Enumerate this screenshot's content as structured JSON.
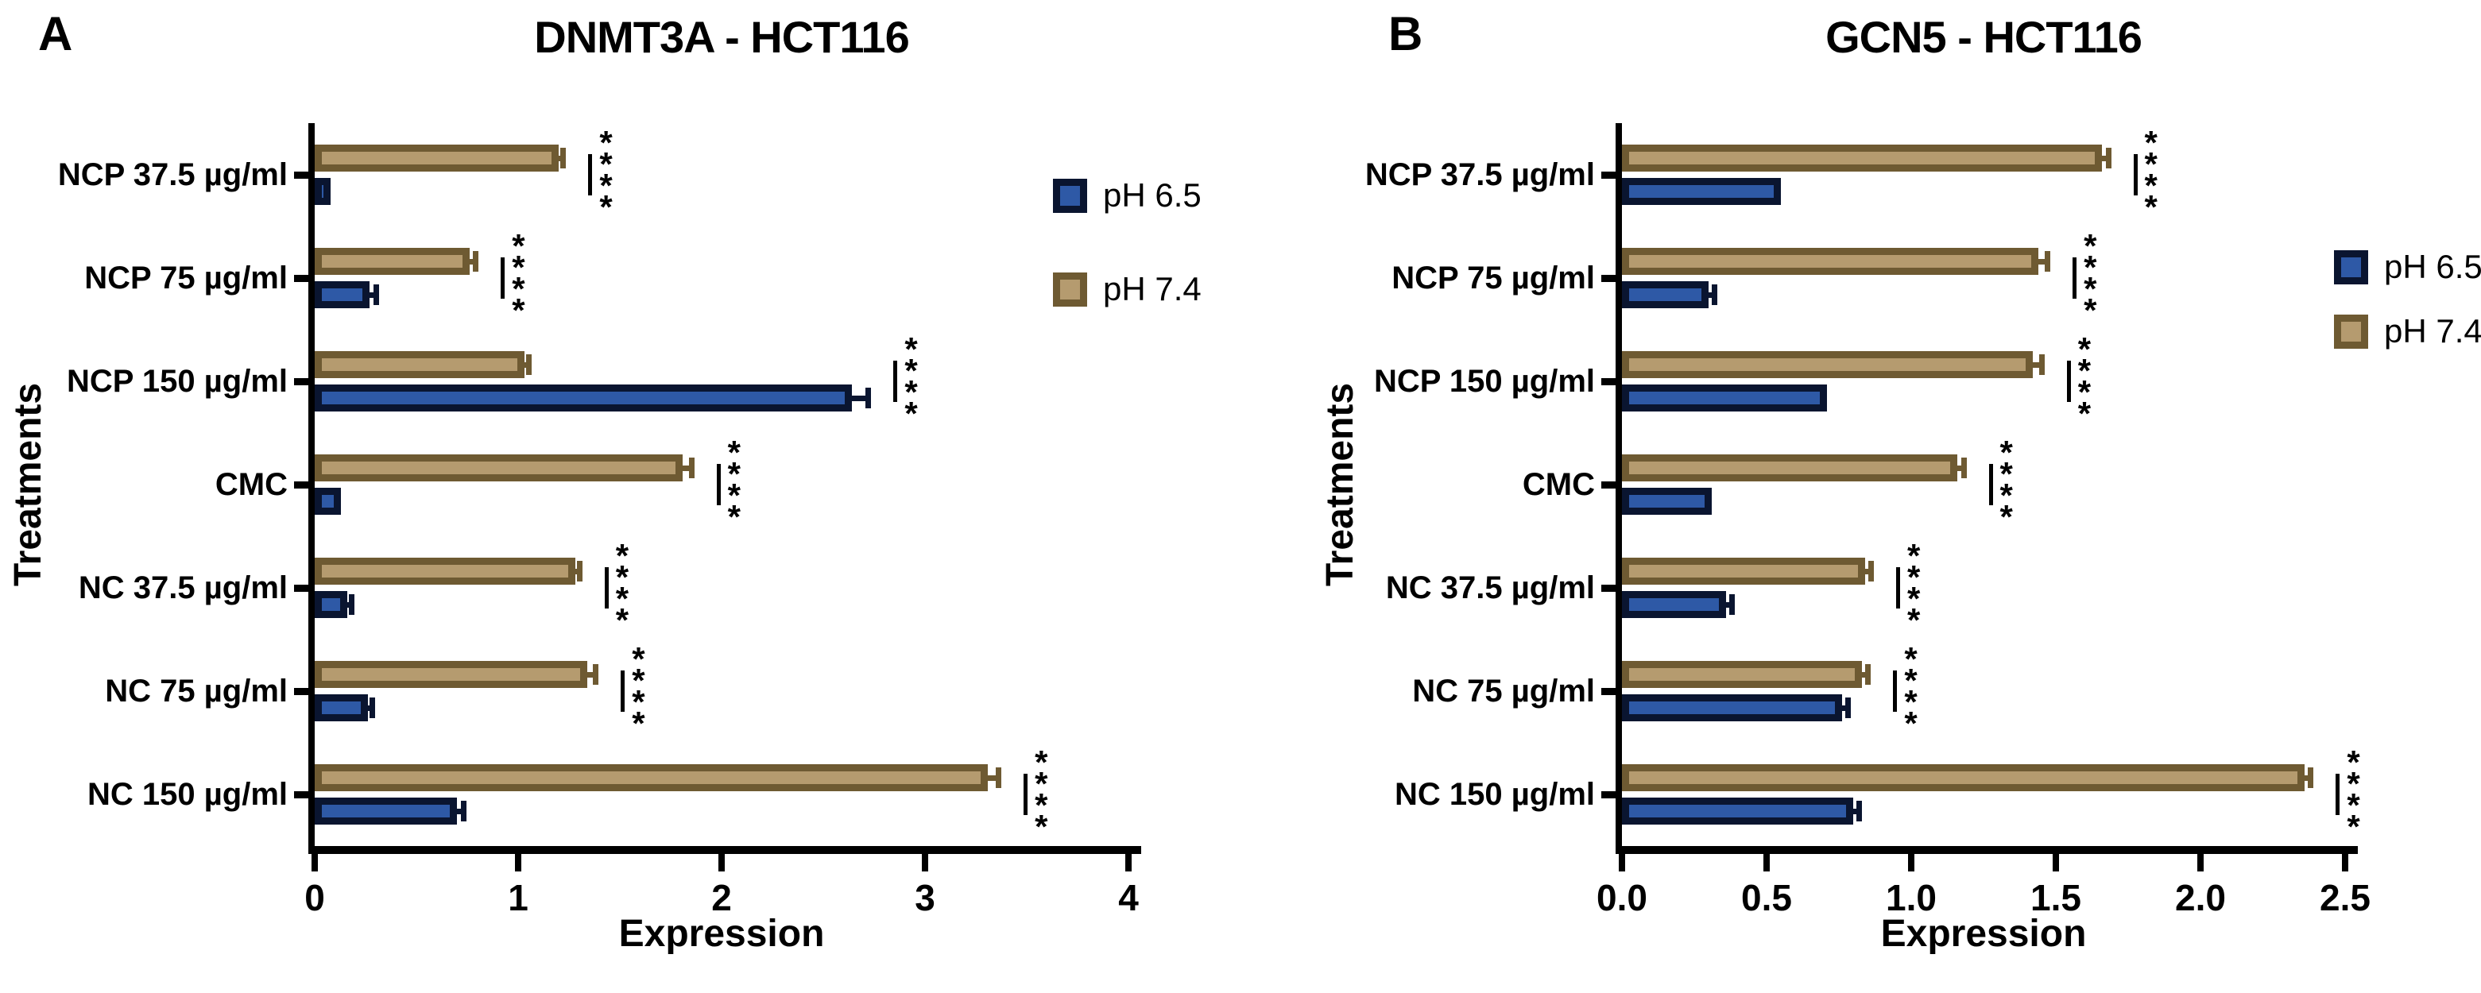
{
  "figure": {
    "background": "#ffffff"
  },
  "chart_data": [
    {
      "type": "bar",
      "orientation": "horizontal",
      "panel_label": "A",
      "title": "DNMT3A - HCT116",
      "xlabel": "Expression",
      "ylabel": "Treatments",
      "categories": [
        "NCP 37.5 µg/ml",
        "NCP 75 µg/ml",
        "NCP 150 µg/ml",
        "CMC",
        "NC 37.5 µg/ml",
        "NC 75 µg/ml",
        "NC 150 µg/ml"
      ],
      "series": [
        {
          "name": "pH 6.5",
          "color": "#2E59A6",
          "border": "#0A1530",
          "values": [
            0.08,
            0.27,
            2.64,
            0.13,
            0.16,
            0.26,
            0.7
          ],
          "errors": [
            0,
            0.03,
            0.08,
            0,
            0.02,
            0.02,
            0.03
          ]
        },
        {
          "name": "pH 7.4",
          "color": "#B59B6F",
          "border": "#6E5A32",
          "values": [
            1.2,
            0.76,
            1.03,
            1.81,
            1.28,
            1.34,
            3.31
          ],
          "errors": [
            0.02,
            0.03,
            0.02,
            0.04,
            0.02,
            0.04,
            0.05
          ]
        }
      ],
      "significance": [
        "****",
        "****",
        "****",
        "****",
        "****",
        "****",
        "****"
      ],
      "xlim": [
        0,
        4
      ],
      "xticks": [
        0,
        1,
        2,
        3,
        4
      ],
      "xtick_labels": [
        "0",
        "1",
        "2",
        "3",
        "4"
      ],
      "grid": false,
      "legend_position": "right-inside-top"
    },
    {
      "type": "bar",
      "orientation": "horizontal",
      "panel_label": "B",
      "title": "GCN5 - HCT116",
      "xlabel": "Expression",
      "ylabel": "Treatments",
      "categories": [
        "NCP 37.5 µg/ml",
        "NCP 75 µg/ml",
        "NCP 150 µg/ml",
        "CMC",
        "NC 37.5 µg/ml",
        "NC 75 µg/ml",
        "NC 150 µg/ml"
      ],
      "series": [
        {
          "name": "pH 6.5",
          "color": "#2E59A6",
          "border": "#0A1530",
          "values": [
            0.55,
            0.3,
            0.71,
            0.31,
            0.36,
            0.76,
            0.8
          ],
          "errors": [
            0,
            0.02,
            0,
            0,
            0.02,
            0.02,
            0.02
          ]
        },
        {
          "name": "pH 7.4",
          "color": "#B59B6F",
          "border": "#6E5A32",
          "values": [
            1.66,
            1.44,
            1.42,
            1.16,
            0.84,
            0.83,
            2.36
          ],
          "errors": [
            0.02,
            0.03,
            0.03,
            0.02,
            0.02,
            0.02,
            0.02
          ]
        }
      ],
      "significance": [
        "****",
        "****",
        "****",
        "****",
        "****",
        "****",
        "****"
      ],
      "xlim": [
        0,
        2.5
      ],
      "xticks": [
        0,
        0.5,
        1,
        1.5,
        2,
        2.5
      ],
      "xtick_labels": [
        "0.0",
        "0.5",
        "1.0",
        "1.5",
        "2.0",
        "2.5"
      ],
      "grid": false,
      "legend_position": "right-inside-middle"
    }
  ]
}
